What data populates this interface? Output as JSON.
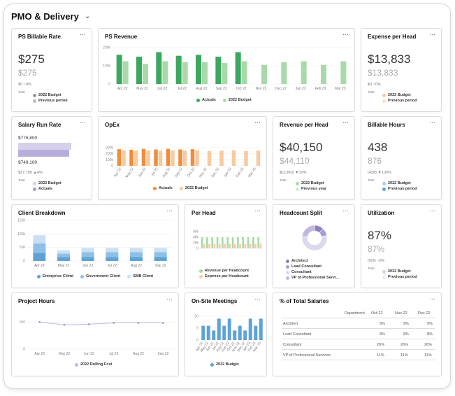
{
  "page": {
    "title": "PMO & Delivery",
    "menu_icon": "chevron-down-icon",
    "card_menu": "···"
  },
  "colors": {
    "actual_green": "#3aa85e",
    "budget_green": "#a9d9a9",
    "orange": "#f08c3c",
    "light_orange": "#f8caa0",
    "purple": "#a89bd0",
    "light_purple": "#d6d0ea",
    "blue": "#5fa3d6",
    "light_blue": "#a8cdec",
    "pale_blue": "#c9e0f4",
    "gray": "#999999"
  },
  "cards": {
    "ps_billable_rate": {
      "title": "PS Billable Rate",
      "value": "$275",
      "budget": "$275",
      "sub": "$0 ~0%",
      "total": "Total",
      "legend": [
        "2022 Budget",
        "Previous period"
      ]
    },
    "ps_revenue": {
      "title": "PS Revenue"
    },
    "expense_per_head": {
      "title": "Expense per Head",
      "value": "$13,833",
      "budget": "$13,833",
      "sub": "$0 ~0%",
      "total": "Total",
      "legend": [
        "2022 Budget",
        "Previous period"
      ]
    },
    "salary_run_rate": {
      "title": "Salary Run Rate",
      "top_value": "$776,800",
      "bottom_value": "$749,100",
      "sub": "$27,700   ▲4%",
      "total": "Total",
      "legend": [
        "2022 Budget",
        "Actuals"
      ],
      "fill": 0.964
    },
    "opex": {
      "title": "OpEx"
    },
    "revenue_per_head": {
      "title": "Revenue per Head",
      "value": "$40,150",
      "budget": "$44,110",
      "sub": "$(3,960)   ▼10%",
      "total": "Total",
      "legend": [
        "2022 Budget",
        "Previous year"
      ]
    },
    "billable_hours": {
      "title": "Billable Hours",
      "value": "438",
      "budget": "876",
      "sub": "(438)   ▼100%",
      "total": "Total",
      "legend": [
        "2022 Budget",
        "Previous period"
      ]
    },
    "client_breakdown": {
      "title": "Client Breakdown"
    },
    "per_head": {
      "title": "Per Head"
    },
    "headcount_split": {
      "title": "Headcount Split",
      "legend": [
        "Architect",
        "Lead Consultant",
        "Consultant",
        "VP of Professional Servi..."
      ]
    },
    "utilization": {
      "title": "Utilization",
      "value": "87%",
      "budget": "87%",
      "sub": "(0)%   ~0%",
      "total": "Total",
      "legend": [
        "2022 Budget",
        "Previous period"
      ]
    },
    "project_hours": {
      "title": "Project Hours"
    },
    "onsite_meetings": {
      "title": "On-Site Meetings"
    },
    "total_salaries": {
      "title": "% of Total Salaries",
      "headers": [
        "Department",
        "Oct-22",
        "Nov-22",
        "Dec-22"
      ],
      "rows": [
        [
          "Architect",
          "9%",
          "9%",
          "9%"
        ],
        [
          "Lead Consultant",
          "8%",
          "8%",
          "8%"
        ],
        [
          "Consultant",
          "26%",
          "26%",
          "26%"
        ],
        [
          "VP of Professional Services",
          "11%",
          "11%",
          "11%"
        ]
      ]
    }
  },
  "chart_data": [
    {
      "id": "ps_revenue",
      "type": "bar",
      "title": "PS Revenue",
      "categories": [
        "Apr 22",
        "May 22",
        "Jun 22",
        "Jul 22",
        "Aug 22",
        "Sep 22",
        "Oct 22",
        "Nov 22",
        "Dec 22",
        "Jan 23",
        "Feb 23",
        "Mar 23"
      ],
      "series": [
        {
          "name": "Actuals",
          "values": [
            160,
            150,
            175,
            155,
            160,
            150,
            175,
            null,
            null,
            null,
            null,
            null
          ]
        },
        {
          "name": "2022 Budget",
          "values": [
            125,
            110,
            125,
            120,
            120,
            115,
            125,
            105,
            120,
            125,
            105,
            125
          ]
        }
      ],
      "yticks": [
        "0",
        "100k",
        "200k"
      ],
      "ylim": [
        0,
        200
      ]
    },
    {
      "id": "opex",
      "type": "bar",
      "title": "OpEx",
      "categories": [
        "Apr 22",
        "May 22",
        "Jun 22",
        "Jul 22",
        "Aug 22",
        "Sep 22",
        "Oct 22",
        "Nov 22",
        "Dec 22",
        "Jan 23",
        "Feb 23",
        "Mar 23"
      ],
      "series": [
        {
          "name": "Actuals",
          "values": [
            275,
            265,
            280,
            270,
            280,
            270,
            275,
            null,
            null,
            null,
            null,
            null
          ]
        },
        {
          "name": "2022 Budget",
          "values": [
            255,
            250,
            255,
            250,
            255,
            250,
            255,
            245,
            250,
            255,
            245,
            250
          ]
        }
      ],
      "yticks": [
        "0",
        "100k",
        "200k",
        "300k"
      ],
      "ylim": [
        0,
        300
      ]
    },
    {
      "id": "client_breakdown",
      "type": "bar",
      "stacked": true,
      "title": "Client Breakdown",
      "categories": [
        "Apr 22",
        "May 22",
        "Jun 22",
        "Jul 22",
        "Aug 22",
        "Sep 22"
      ],
      "series": [
        {
          "name": "Enterprise Client",
          "values": [
            30,
            15,
            15,
            15,
            15,
            15
          ]
        },
        {
          "name": "Government Client",
          "values": [
            35,
            12,
            18,
            18,
            18,
            18
          ]
        },
        {
          "name": "SMB Client",
          "values": [
            30,
            12,
            15,
            15,
            15,
            15
          ]
        }
      ],
      "yticks": [
        "0",
        "50k",
        "100k",
        "150k"
      ],
      "ylim": [
        0,
        150
      ]
    },
    {
      "id": "per_head",
      "type": "bar",
      "title": "Per Head",
      "categories": [
        "",
        "",
        "",
        "",
        "",
        "",
        "",
        "",
        "",
        "",
        "",
        ""
      ],
      "series": [
        {
          "name": "Revenue per Headcount",
          "values": [
            40,
            40,
            40,
            40,
            40,
            40,
            40,
            40,
            40,
            40,
            40,
            40
          ]
        },
        {
          "name": "Expense per Headcount",
          "values": [
            16,
            16,
            16,
            16,
            16,
            16,
            16,
            16,
            16,
            16,
            16,
            16
          ]
        }
      ],
      "yticks": [
        "0",
        "20k",
        "40k",
        "60k"
      ],
      "ylim": [
        0,
        60
      ]
    },
    {
      "id": "headcount_split",
      "type": "pie",
      "title": "Headcount Split",
      "labels": [
        "Architect",
        "Lead Consultant",
        "Consultant",
        "VP of Professional Servi..."
      ],
      "values": [
        12,
        10,
        55,
        23
      ]
    },
    {
      "id": "project_hours",
      "type": "line",
      "title": "Project Hours",
      "categories": [
        "Apr 22",
        "May 22",
        "Jun 22",
        "Jul 22",
        "Aug 22",
        "Sep 22"
      ],
      "series": [
        {
          "name": "2022 Rolling Fcst",
          "values": [
            100,
            90,
            92,
            97,
            97,
            97
          ]
        }
      ],
      "yticks": [
        "0",
        "100"
      ],
      "ylim": [
        0,
        150
      ]
    },
    {
      "id": "onsite_meetings",
      "type": "bar",
      "title": "On-Site Meetings",
      "categories": [
        "Apr 22",
        "May 22",
        "Jun 22",
        "Jul 22",
        "Aug 22",
        "Sep 22",
        "Oct 22",
        "Nov 22",
        "Dec 22",
        "Jan 23",
        "Feb 23",
        "Mar 23"
      ],
      "series": [
        {
          "name": "2022 Budget",
          "values": [
            6,
            6,
            4,
            9,
            6,
            9,
            4,
            6,
            4,
            9,
            6,
            9
          ]
        }
      ],
      "yticks": [
        "0",
        "5",
        "10"
      ],
      "ylim": [
        0,
        10
      ]
    }
  ]
}
